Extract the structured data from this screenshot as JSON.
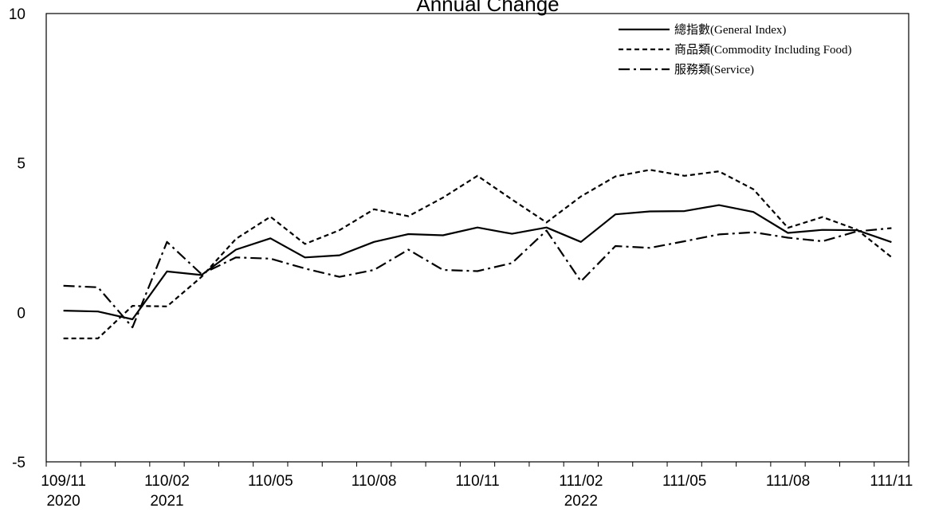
{
  "chart_data": {
    "type": "line",
    "title": "Annual Change",
    "ylim": [
      -5,
      10
    ],
    "y_ticks": [
      "10",
      "5",
      "0",
      "-5"
    ],
    "y_tick_values": [
      10,
      5,
      0,
      -5
    ],
    "x": [
      "109/11",
      "109/12",
      "110/01",
      "110/02",
      "110/03",
      "110/04",
      "110/05",
      "110/06",
      "110/07",
      "110/08",
      "110/09",
      "110/10",
      "110/11",
      "110/12",
      "111/01",
      "111/02",
      "111/03",
      "111/04",
      "111/05",
      "111/06",
      "111/07",
      "111/08",
      "111/09",
      "111/10",
      "111/11"
    ],
    "x_tick_labels": [
      {
        "index": 0,
        "label": "109/11",
        "year": "2020"
      },
      {
        "index": 3,
        "label": "110/02",
        "year": "2021"
      },
      {
        "index": 6,
        "label": "110/05",
        "year": ""
      },
      {
        "index": 9,
        "label": "110/08",
        "year": ""
      },
      {
        "index": 12,
        "label": "110/11",
        "year": ""
      },
      {
        "index": 15,
        "label": "111/02",
        "year": "2022"
      },
      {
        "index": 18,
        "label": "111/05",
        "year": ""
      },
      {
        "index": 21,
        "label": "111/08",
        "year": ""
      },
      {
        "index": 24,
        "label": "111/11",
        "year": ""
      }
    ],
    "grid": false,
    "legend_position": "top-right",
    "series": [
      {
        "name": "總指數(General Index)",
        "style": "solid",
        "color": "#000000",
        "values": [
          0.06,
          0.03,
          -0.23,
          1.37,
          1.25,
          2.1,
          2.48,
          1.84,
          1.91,
          2.36,
          2.62,
          2.58,
          2.84,
          2.63,
          2.84,
          2.36,
          3.28,
          3.38,
          3.39,
          3.59,
          3.36,
          2.66,
          2.76,
          2.75,
          2.35
        ]
      },
      {
        "name": "商品類(Commodity Including Food)",
        "style": "dashed",
        "color": "#000000",
        "values": [
          -0.87,
          -0.87,
          0.22,
          0.2,
          1.19,
          2.46,
          3.2,
          2.29,
          2.75,
          3.45,
          3.22,
          3.84,
          4.57,
          3.78,
          3.01,
          3.88,
          4.55,
          4.77,
          4.57,
          4.72,
          4.12,
          2.83,
          3.19,
          2.77,
          1.85
        ]
      },
      {
        "name": "服務類(Service)",
        "style": "dashdot",
        "color": "#000000",
        "values": [
          0.89,
          0.84,
          -0.5,
          2.36,
          1.28,
          1.84,
          1.8,
          1.47,
          1.19,
          1.42,
          2.1,
          1.42,
          1.38,
          1.65,
          2.74,
          1.04,
          2.22,
          2.16,
          2.38,
          2.61,
          2.68,
          2.5,
          2.38,
          2.71,
          2.82
        ]
      }
    ]
  }
}
